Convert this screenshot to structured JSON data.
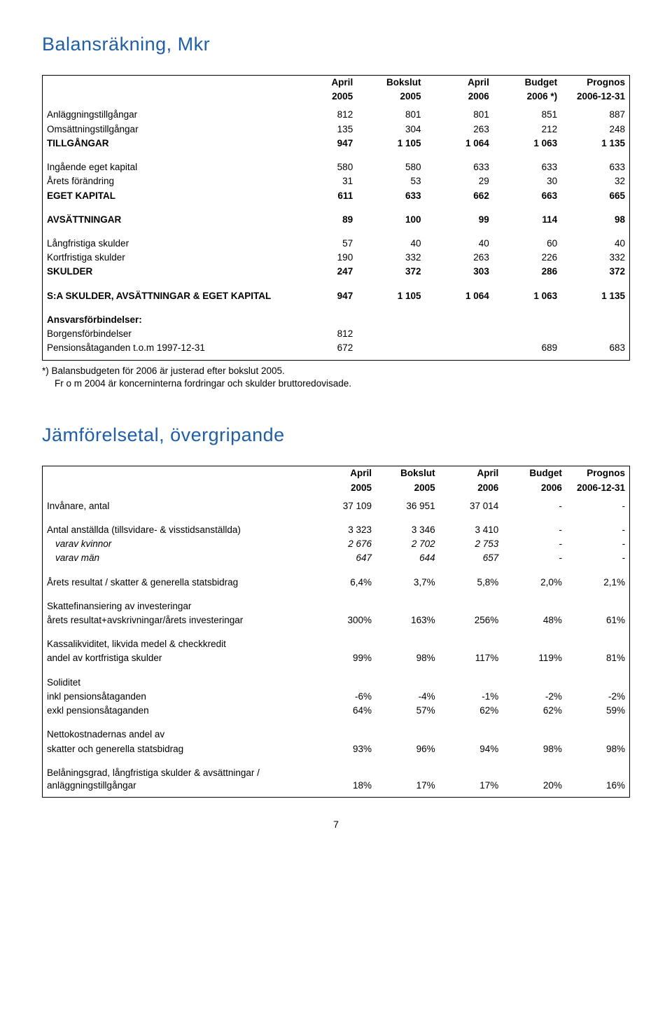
{
  "page_number": "7",
  "section1": {
    "title": "Balansräkning, Mkr",
    "header1": [
      "April",
      "Bokslut",
      "April",
      "Budget",
      "Prognos"
    ],
    "header2": [
      "2005",
      "2005",
      "2006",
      "2006 *)",
      "2006-12-31"
    ],
    "groups": [
      {
        "rows": [
          {
            "label": "Anläggningstillgångar",
            "v": [
              "812",
              "801",
              "801",
              "851",
              "887"
            ]
          },
          {
            "label": "Omsättningstillgångar",
            "v": [
              "135",
              "304",
              "263",
              "212",
              "248"
            ]
          },
          {
            "label": "TILLGÅNGAR",
            "v": [
              "947",
              "1 105",
              "1 064",
              "1 063",
              "1 135"
            ],
            "bold": true
          }
        ]
      },
      {
        "rows": [
          {
            "label": "Ingående eget kapital",
            "v": [
              "580",
              "580",
              "633",
              "633",
              "633"
            ]
          },
          {
            "label": "Årets förändring",
            "v": [
              "31",
              "53",
              "29",
              "30",
              "32"
            ]
          },
          {
            "label": "EGET KAPITAL",
            "v": [
              "611",
              "633",
              "662",
              "663",
              "665"
            ],
            "bold": true
          }
        ]
      },
      {
        "rows": [
          {
            "label": "AVSÄTTNINGAR",
            "v": [
              "89",
              "100",
              "99",
              "114",
              "98"
            ],
            "bold": true
          }
        ]
      },
      {
        "rows": [
          {
            "label": "Långfristiga skulder",
            "v": [
              "57",
              "40",
              "40",
              "60",
              "40"
            ]
          },
          {
            "label": "Kortfristiga skulder",
            "v": [
              "190",
              "332",
              "263",
              "226",
              "332"
            ]
          },
          {
            "label": "SKULDER",
            "v": [
              "247",
              "372",
              "303",
              "286",
              "372"
            ],
            "bold": true
          }
        ]
      },
      {
        "rows": [
          {
            "label": "S:A SKULDER, AVSÄTTNINGAR & EGET KAPITAL",
            "v": [
              "947",
              "1 105",
              "1 064",
              "1 063",
              "1 135"
            ],
            "bold": true
          }
        ]
      },
      {
        "rows": [
          {
            "label": "Ansvarsförbindelser:",
            "v": [
              "",
              "",
              "",
              "",
              ""
            ],
            "bold": true
          },
          {
            "label": "Borgensförbindelser",
            "v": [
              "812",
              "",
              "",
              "",
              ""
            ]
          },
          {
            "label": "Pensionsåtaganden t.o.m 1997-12-31",
            "v": [
              "672",
              "",
              "",
              "689",
              "683"
            ]
          }
        ]
      }
    ],
    "note1": "*) Balansbudgeten för 2006 är justerad efter bokslut 2005.",
    "note2": "Fr o m 2004 är koncerninterna fordringar och skulder bruttoredovisade."
  },
  "section2": {
    "title": "Jämförelsetal, övergripande",
    "header1": [
      "April",
      "Bokslut",
      "April",
      "Budget",
      "Prognos"
    ],
    "header2": [
      "2005",
      "2005",
      "2006",
      "2006",
      "2006-12-31"
    ],
    "groups": [
      {
        "rows": [
          {
            "label": "Invånare, antal",
            "v": [
              "37 109",
              "36 951",
              "37 014",
              "-",
              "-"
            ]
          }
        ]
      },
      {
        "rows": [
          {
            "label": "Antal anställda (tillsvidare- & visstidsanställda)",
            "v": [
              "3 323",
              "3 346",
              "3 410",
              "-",
              "-"
            ]
          },
          {
            "label": "varav kvinnor",
            "v": [
              "2 676",
              "2 702",
              "2 753",
              "-",
              "-"
            ],
            "italic": true
          },
          {
            "label": "varav män",
            "v": [
              "647",
              "644",
              "657",
              "-",
              "-"
            ],
            "italic": true
          }
        ]
      },
      {
        "rows": [
          {
            "label": "Årets resultat / skatter & generella statsbidrag",
            "v": [
              "6,4%",
              "3,7%",
              "5,8%",
              "2,0%",
              "2,1%"
            ]
          }
        ]
      },
      {
        "rows": [
          {
            "label": "Skattefinansiering av investeringar",
            "v": [
              "",
              "",
              "",
              "",
              ""
            ]
          },
          {
            "label": "årets resultat+avskrivningar/årets investeringar",
            "v": [
              "300%",
              "163%",
              "256%",
              "48%",
              "61%"
            ]
          }
        ]
      },
      {
        "rows": [
          {
            "label": "Kassalikviditet, likvida medel & checkkredit",
            "v": [
              "",
              "",
              "",
              "",
              ""
            ]
          },
          {
            "label": "andel av kortfristiga skulder",
            "v": [
              "99%",
              "98%",
              "117%",
              "119%",
              "81%"
            ]
          }
        ]
      },
      {
        "rows": [
          {
            "label": "Soliditet",
            "v": [
              "",
              "",
              "",
              "",
              ""
            ]
          },
          {
            "label": "inkl pensionsåtaganden",
            "v": [
              "-6%",
              "-4%",
              "-1%",
              "-2%",
              "-2%"
            ]
          },
          {
            "label": "exkl pensionsåtaganden",
            "v": [
              "64%",
              "57%",
              "62%",
              "62%",
              "59%"
            ]
          }
        ]
      },
      {
        "rows": [
          {
            "label": "Nettokostnadernas andel av",
            "v": [
              "",
              "",
              "",
              "",
              ""
            ]
          },
          {
            "label": "skatter och generella statsbidrag",
            "v": [
              "93%",
              "96%",
              "94%",
              "98%",
              "98%"
            ]
          }
        ]
      },
      {
        "rows": [
          {
            "label": "Belåningsgrad, långfristiga skulder & avsättningar / anläggningstillgångar",
            "v": [
              "18%",
              "17%",
              "17%",
              "20%",
              "16%"
            ]
          }
        ]
      }
    ]
  }
}
